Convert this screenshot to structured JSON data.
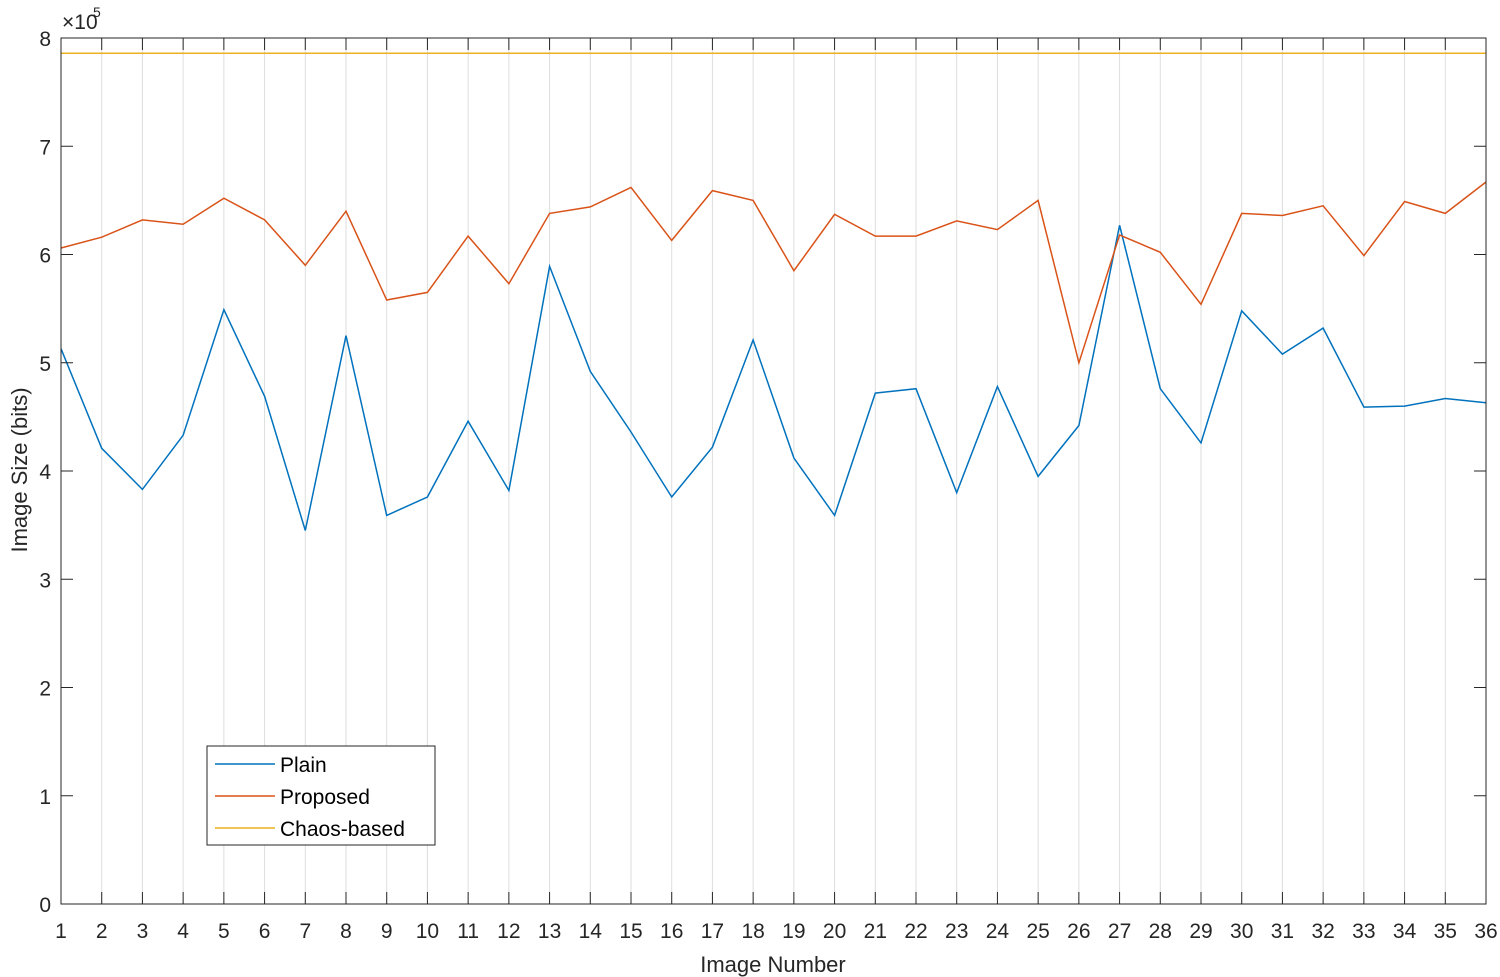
{
  "chart_data": {
    "type": "line",
    "title": "",
    "xlabel": "Image Number",
    "ylabel": "Image Size (bits)",
    "y_exponent_base": "×10",
    "y_exponent_power": "5",
    "x": [
      1,
      2,
      3,
      4,
      5,
      6,
      7,
      8,
      9,
      10,
      11,
      12,
      13,
      14,
      15,
      16,
      17,
      18,
      19,
      20,
      21,
      22,
      23,
      24,
      25,
      26,
      27,
      28,
      29,
      30,
      31,
      32,
      33,
      34,
      35,
      36
    ],
    "xlim": [
      1,
      36
    ],
    "ylim": [
      0,
      8
    ],
    "x_ticks": [
      "1",
      "2",
      "3",
      "4",
      "5",
      "6",
      "7",
      "8",
      "9",
      "10",
      "11",
      "12",
      "13",
      "14",
      "15",
      "16",
      "17",
      "18",
      "19",
      "20",
      "21",
      "22",
      "23",
      "24",
      "25",
      "26",
      "27",
      "28",
      "29",
      "30",
      "31",
      "32",
      "33",
      "34",
      "35",
      "36"
    ],
    "y_ticks": [
      "0",
      "1",
      "2",
      "3",
      "4",
      "5",
      "6",
      "7",
      "8"
    ],
    "grid": "vertical",
    "legend_position": "bottom-left",
    "series": [
      {
        "name": "Plain",
        "color": "#0072BD",
        "values": [
          5.13,
          4.21,
          3.83,
          4.33,
          5.49,
          4.69,
          3.45,
          5.25,
          3.59,
          3.76,
          4.46,
          3.82,
          5.89,
          4.92,
          4.36,
          3.76,
          4.22,
          5.21,
          4.12,
          3.59,
          4.72,
          4.76,
          3.8,
          4.78,
          3.95,
          4.42,
          6.27,
          4.76,
          4.26,
          5.48,
          5.08,
          5.32,
          4.59,
          4.6,
          4.67,
          4.63
        ]
      },
      {
        "name": "Proposed",
        "color": "#D95319",
        "values": [
          6.06,
          6.16,
          6.32,
          6.28,
          6.52,
          6.32,
          5.9,
          6.4,
          5.58,
          5.65,
          6.17,
          5.73,
          6.38,
          6.44,
          6.62,
          6.13,
          6.59,
          6.5,
          5.85,
          6.37,
          6.17,
          6.17,
          6.31,
          6.23,
          6.5,
          5.0,
          6.18,
          6.02,
          5.54,
          6.38,
          6.36,
          6.45,
          5.99,
          6.49,
          6.38,
          6.67
        ]
      },
      {
        "name": "Chaos-based",
        "color": "#EDB120",
        "values": [
          7.86,
          7.86,
          7.86,
          7.86,
          7.86,
          7.86,
          7.86,
          7.86,
          7.86,
          7.86,
          7.86,
          7.86,
          7.86,
          7.86,
          7.86,
          7.86,
          7.86,
          7.86,
          7.86,
          7.86,
          7.86,
          7.86,
          7.86,
          7.86,
          7.86,
          7.86,
          7.86,
          7.86,
          7.86,
          7.86,
          7.86,
          7.86,
          7.86,
          7.86,
          7.86,
          7.86
        ]
      }
    ]
  }
}
